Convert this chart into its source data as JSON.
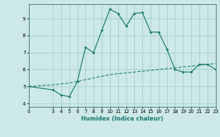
{
  "xlabel": "Humidex (Indice chaleur)",
  "ylabel": "",
  "background_color": "#cce8e8",
  "grid_color": "#aacfcf",
  "line_color": "#1a7a6e",
  "xlim": [
    0,
    23
  ],
  "ylim": [
    3.8,
    9.85
  ],
  "x_ticks": [
    0,
    3,
    4,
    5,
    6,
    7,
    8,
    9,
    10,
    11,
    12,
    13,
    14,
    15,
    16,
    17,
    18,
    19,
    20,
    21,
    22,
    23
  ],
  "y_ticks": [
    4,
    5,
    6,
    7,
    8,
    9
  ],
  "curve1_x": [
    0,
    3,
    4,
    5,
    6,
    7,
    8,
    9,
    10,
    11,
    12,
    13,
    14,
    15,
    16,
    17,
    18,
    19,
    20,
    21,
    22,
    23
  ],
  "curve1_y": [
    5.0,
    4.8,
    4.5,
    4.4,
    5.3,
    7.3,
    7.0,
    8.3,
    9.55,
    9.3,
    8.55,
    9.3,
    9.35,
    8.2,
    8.2,
    7.2,
    6.0,
    5.85,
    5.85,
    6.3,
    6.3,
    6.0
  ],
  "curve2_x": [
    0,
    3,
    4,
    5,
    6,
    7,
    8,
    9,
    10,
    11,
    12,
    13,
    14,
    15,
    16,
    17,
    18,
    19,
    20,
    21,
    22,
    23
  ],
  "curve2_y": [
    5.0,
    5.1,
    5.15,
    5.2,
    5.3,
    5.4,
    5.5,
    5.6,
    5.7,
    5.75,
    5.8,
    5.85,
    5.9,
    5.95,
    6.0,
    6.05,
    6.1,
    6.15,
    6.2,
    6.25,
    6.3,
    6.35
  ]
}
